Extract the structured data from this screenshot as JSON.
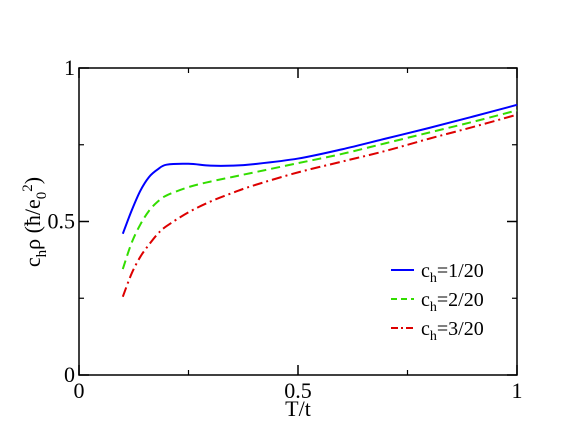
{
  "chart_data": {
    "type": "line",
    "xlabel": "T/t",
    "ylabel": "c_hρ (ħ/e_0^2)",
    "xlim": [
      0,
      1
    ],
    "ylim": [
      0,
      1
    ],
    "x_ticks": [
      0,
      0.5,
      1
    ],
    "x_tick_labels": [
      "0",
      "0.5",
      "1"
    ],
    "y_ticks": [
      0,
      0.5,
      1
    ],
    "y_tick_labels": [
      "0",
      "0.5",
      "1"
    ],
    "grid": false,
    "legend_position": "bottom-right",
    "series": [
      {
        "name": "c_h=1/20",
        "legend_main": "c",
        "legend_sub": "h",
        "legend_rest": "=1/20",
        "color": "#0000ff",
        "dash": "solid",
        "x": [
          0.1,
          0.12,
          0.14,
          0.16,
          0.18,
          0.2,
          0.25,
          0.3,
          0.35,
          0.4,
          0.5,
          0.6,
          0.7,
          0.8,
          0.9,
          1.0
        ],
        "y": [
          0.46,
          0.535,
          0.6,
          0.645,
          0.67,
          0.685,
          0.688,
          0.682,
          0.682,
          0.687,
          0.705,
          0.735,
          0.77,
          0.805,
          0.842,
          0.88
        ]
      },
      {
        "name": "c_h=2/20",
        "legend_main": "c",
        "legend_sub": "h",
        "legend_rest": "=2/20",
        "color": "#33dd00",
        "dash": "dashed",
        "x": [
          0.1,
          0.12,
          0.14,
          0.16,
          0.18,
          0.2,
          0.25,
          0.3,
          0.35,
          0.4,
          0.5,
          0.6,
          0.7,
          0.8,
          0.9,
          1.0
        ],
        "y": [
          0.345,
          0.43,
          0.49,
          0.535,
          0.565,
          0.585,
          0.612,
          0.63,
          0.645,
          0.66,
          0.69,
          0.72,
          0.755,
          0.79,
          0.825,
          0.862
        ]
      },
      {
        "name": "c_h=3/20",
        "legend_main": "c",
        "legend_sub": "h",
        "legend_rest": "=3/20",
        "color": "#dd0000",
        "dash": "dashdot",
        "x": [
          0.1,
          0.12,
          0.14,
          0.16,
          0.18,
          0.2,
          0.25,
          0.3,
          0.35,
          0.4,
          0.5,
          0.6,
          0.7,
          0.8,
          0.9,
          1.0
        ],
        "y": [
          0.255,
          0.33,
          0.385,
          0.425,
          0.46,
          0.485,
          0.53,
          0.565,
          0.593,
          0.618,
          0.66,
          0.695,
          0.73,
          0.77,
          0.808,
          0.848
        ]
      }
    ]
  }
}
